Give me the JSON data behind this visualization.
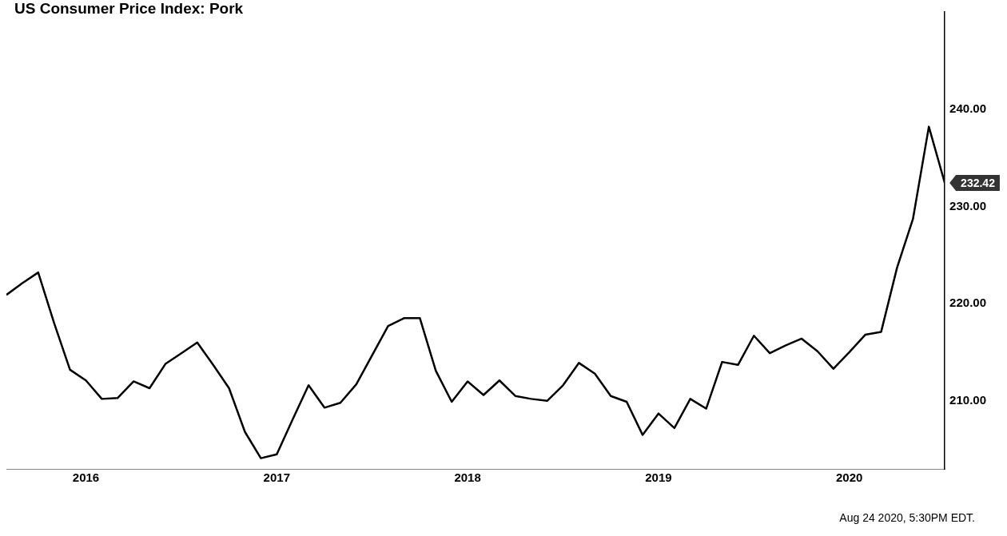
{
  "chart_data": {
    "type": "line",
    "title": "US Consumer Price Index: Pork",
    "x": [
      "2015-08",
      "2015-09",
      "2015-10",
      "2015-11",
      "2015-12",
      "2016-01",
      "2016-02",
      "2016-03",
      "2016-04",
      "2016-05",
      "2016-06",
      "2016-07",
      "2016-08",
      "2016-09",
      "2016-10",
      "2016-11",
      "2016-12",
      "2017-01",
      "2017-02",
      "2017-03",
      "2017-04",
      "2017-05",
      "2017-06",
      "2017-07",
      "2017-08",
      "2017-09",
      "2017-10",
      "2017-11",
      "2017-12",
      "2018-01",
      "2018-02",
      "2018-03",
      "2018-04",
      "2018-05",
      "2018-06",
      "2018-07",
      "2018-08",
      "2018-09",
      "2018-10",
      "2018-11",
      "2018-12",
      "2019-01",
      "2019-02",
      "2019-03",
      "2019-04",
      "2019-05",
      "2019-06",
      "2019-07",
      "2019-08",
      "2019-09",
      "2019-10",
      "2019-11",
      "2019-12",
      "2020-01",
      "2020-02",
      "2020-03",
      "2020-04",
      "2020-05",
      "2020-06",
      "2020-07"
    ],
    "series": [
      {
        "color": "#000000",
        "values": [
          220.9,
          222.1,
          223.2,
          218.0,
          213.2,
          212.1,
          210.2,
          210.3,
          212.0,
          211.3,
          213.8,
          214.9,
          216.0,
          213.7,
          211.3,
          206.8,
          204.1,
          204.5,
          208.1,
          211.6,
          209.3,
          209.8,
          211.7,
          214.7,
          217.7,
          218.5,
          218.5,
          213.1,
          209.9,
          212.0,
          210.6,
          212.1,
          210.5,
          210.2,
          210.0,
          211.6,
          213.9,
          212.8,
          210.5,
          209.9,
          206.5,
          208.7,
          207.2,
          210.2,
          209.2,
          214.0,
          213.7,
          216.7,
          214.9,
          215.7,
          216.4,
          215.1,
          213.3,
          215.0,
          216.8,
          217.1,
          223.7,
          228.7,
          238.2,
          232.42
        ]
      }
    ],
    "xlim": [
      "2015-08",
      "2020-07"
    ],
    "xticks": [
      "2016",
      "2017",
      "2018",
      "2019",
      "2020"
    ],
    "ylim": [
      203,
      250
    ],
    "yticks": [
      {
        "value": 210,
        "label": "210.00"
      },
      {
        "value": 220,
        "label": "220.00"
      },
      {
        "value": 230,
        "label": "230.00"
      },
      {
        "value": 240,
        "label": "240.00"
      }
    ],
    "grid": false,
    "legend": false,
    "marker": "none",
    "line_style": "solid",
    "annotations": [
      {
        "text": "232.42",
        "x": "2020-07",
        "y": 232.42
      },
      "Aug 24 2020, 5:30PM EDT."
    ]
  }
}
